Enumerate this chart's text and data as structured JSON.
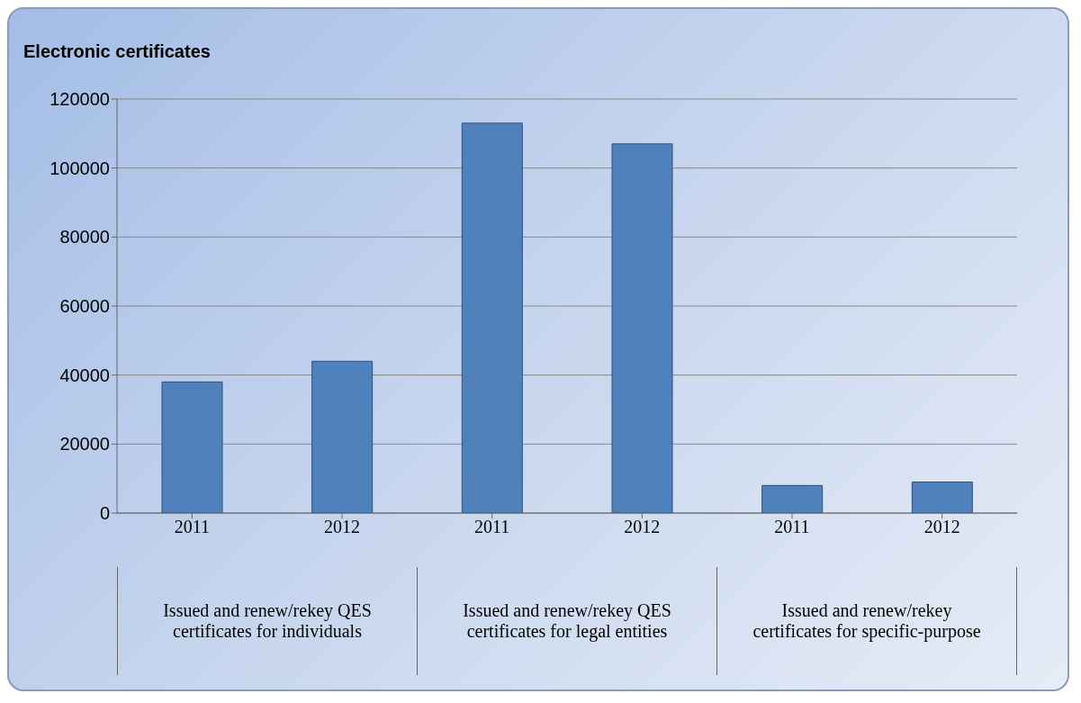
{
  "chart_data": {
    "type": "bar",
    "title": "Electronic certificates",
    "categories": [
      "2011",
      "2012",
      "2011",
      "2012",
      "2011",
      "2012"
    ],
    "values": [
      38000,
      44000,
      113000,
      107000,
      8000,
      9000
    ],
    "color": "#4f81bd",
    "ylim": [
      0,
      120000
    ],
    "yticks": [
      0,
      20000,
      40000,
      60000,
      80000,
      100000,
      120000
    ],
    "grid": "y",
    "annotations": [
      "Issued and renew/rekey QES certificates for individuals",
      "Issued and renew/rekey QES certificates for legal entities",
      "Issued and renew/rekey certificates for specific-purpose"
    ]
  }
}
